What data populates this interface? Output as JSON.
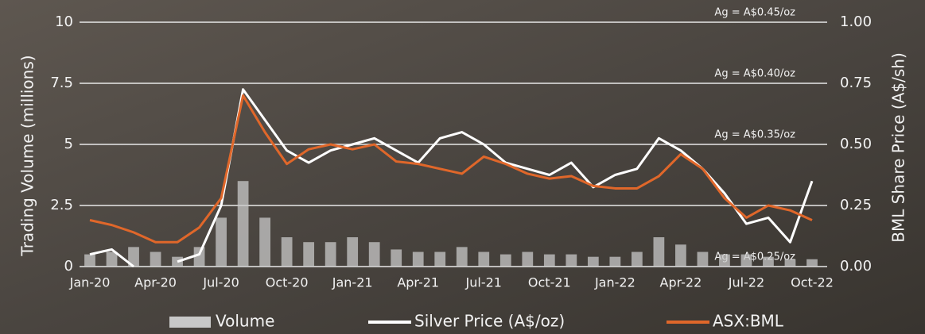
{
  "chart_data": {
    "type": "line",
    "y_label": "Trading Volume (millions)",
    "y2_label": "BML Share Price (A$/sh)",
    "x": [
      0,
      1,
      2,
      3,
      4,
      5,
      6,
      7,
      8,
      9,
      10,
      11,
      12,
      13,
      14,
      15,
      16,
      17,
      18,
      19,
      20,
      21,
      22,
      23,
      24,
      25,
      26,
      27,
      28,
      29,
      30,
      31,
      32,
      33
    ],
    "xlim": [
      0,
      33.4
    ],
    "xticks": [
      {
        "value": 0,
        "label": "Jan-20"
      },
      {
        "value": 3,
        "label": "Apr-20"
      },
      {
        "value": 6,
        "label": "Jul-20"
      },
      {
        "value": 9,
        "label": "Oct-20"
      },
      {
        "value": 12,
        "label": "Jan-21"
      },
      {
        "value": 15,
        "label": "Apr-21"
      },
      {
        "value": 18,
        "label": "Jul-21"
      },
      {
        "value": 21,
        "label": "Oct-21"
      },
      {
        "value": 24,
        "label": "Jan-22"
      },
      {
        "value": 27,
        "label": "Apr-22"
      },
      {
        "value": 30,
        "label": "Jul-22"
      },
      {
        "value": 33,
        "label": "Oct-22"
      }
    ],
    "ylim": [
      0,
      10
    ],
    "yticks": [
      0,
      2.5,
      5,
      7.5,
      10
    ],
    "y2lim": [
      0,
      1
    ],
    "y2ticks": [
      {
        "value": 0,
        "label": "0.00"
      },
      {
        "value": 0.25,
        "label": "0.25"
      },
      {
        "value": 0.5,
        "label": "0.50"
      },
      {
        "value": 0.75,
        "label": "0.75"
      },
      {
        "value": 1,
        "label": "1.00"
      }
    ],
    "y3lim": [
      0.25,
      0.45
    ],
    "y3ticks": [
      {
        "value": 0.25,
        "label": "Ag = A$0.25/oz"
      },
      {
        "value": 0.35,
        "label": "Ag = A$0.35/oz"
      },
      {
        "value": 0.4,
        "label": "Ag = A$0.40/oz"
      },
      {
        "value": 0.45,
        "label": "Ag = A$0.45/oz"
      }
    ],
    "grid": true,
    "legend": "bottom",
    "series": [
      {
        "name": "Volume",
        "type": "bar",
        "axis": "y",
        "color": "#c8c8c8",
        "values": [
          0.5,
          0.6,
          0.8,
          0.6,
          0.4,
          0.8,
          2.0,
          3.5,
          2.0,
          1.2,
          1.0,
          1.0,
          1.2,
          1.0,
          0.7,
          0.6,
          0.6,
          0.8,
          0.6,
          0.5,
          0.6,
          0.5,
          0.5,
          0.4,
          0.4,
          0.6,
          1.2,
          0.9,
          0.6,
          0.5,
          0.5,
          0.4,
          0.3,
          0.3
        ]
      },
      {
        "name": "Silver Price (A$/oz)",
        "type": "line",
        "axis": "y3",
        "color": "#ffffff",
        "values": [
          0.26,
          0.264,
          0.25,
          null,
          0.254,
          0.26,
          0.3,
          0.395,
          0.37,
          0.345,
          0.335,
          0.345,
          0.35,
          0.355,
          0.345,
          0.335,
          0.355,
          0.36,
          0.35,
          0.335,
          0.33,
          0.325,
          0.335,
          0.315,
          0.325,
          0.33,
          0.355,
          0.345,
          0.33,
          0.31,
          0.285,
          0.29,
          0.27,
          0.32
        ]
      },
      {
        "name": "ASX:BML",
        "type": "line",
        "axis": "y2",
        "color": "#e0672a",
        "values": [
          0.19,
          0.17,
          0.14,
          0.1,
          0.1,
          0.16,
          0.28,
          0.7,
          0.55,
          0.42,
          0.48,
          0.5,
          0.48,
          0.5,
          0.43,
          0.42,
          0.4,
          0.38,
          0.45,
          0.42,
          0.38,
          0.36,
          0.37,
          0.33,
          0.32,
          0.32,
          0.37,
          0.46,
          0.4,
          0.28,
          0.2,
          0.25,
          0.23,
          0.19
        ]
      }
    ]
  }
}
